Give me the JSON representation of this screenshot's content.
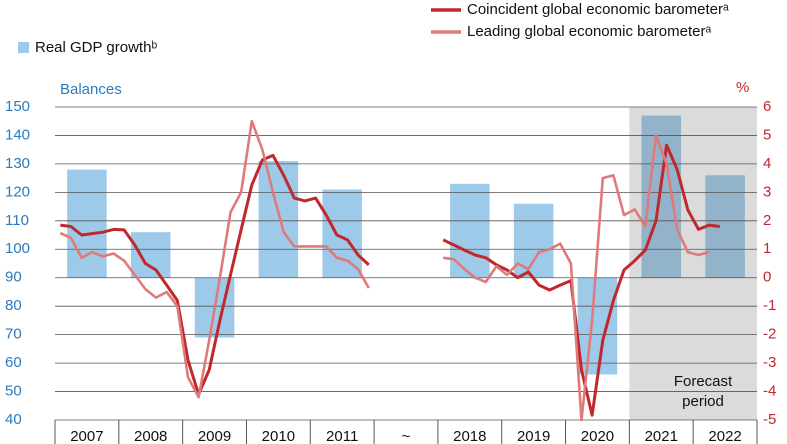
{
  "chart_data": {
    "type": "combo",
    "categories": [
      "2007",
      "2008",
      "2009",
      "2010",
      "2011",
      "~",
      "2018",
      "2019",
      "2020",
      "2021",
      "2022"
    ],
    "series": [
      {
        "name": "Real GDP growthᵇ",
        "type": "bar",
        "axis": "y2",
        "color": "#9ecae9",
        "values": [
          3.8,
          1.6,
          -2.1,
          4.1,
          3.1,
          null,
          3.3,
          2.6,
          -3.4,
          5.7,
          3.6
        ]
      },
      {
        "name": "Coincident global economic barometerᵃ",
        "type": "line",
        "color": "#c0282d",
        "values": [
          [
            108.5,
            108,
            105,
            105.5,
            106,
            107
          ],
          [
            106.8,
            101.5,
            95,
            92.7,
            87.4,
            82
          ],
          [
            61,
            49,
            57.6,
            75,
            91,
            106.8
          ],
          [
            122.6,
            131.4,
            133,
            126,
            118,
            117
          ],
          [
            118,
            112,
            105,
            103.3,
            98,
            94.5
          ],
          [
            null,
            null,
            null,
            null,
            null,
            null
          ],
          [
            103.3,
            101.5,
            99.7,
            98,
            97,
            94.5
          ],
          [
            92.7,
            90,
            92,
            87.4,
            85.7,
            87.4
          ],
          [
            89,
            57.6,
            41.7,
            68,
            82,
            92.7
          ],
          [
            96,
            99.7,
            110,
            136.6,
            128,
            113.8
          ],
          [
            107,
            108.5,
            108,
            null,
            null,
            null
          ]
        ]
      },
      {
        "name": "Leading global economic barometerᵃ",
        "type": "line",
        "color": "#e07a7a",
        "values": [
          [
            105.7,
            104,
            97,
            99,
            97.5,
            98.5
          ],
          [
            96,
            91,
            86,
            83,
            85,
            80
          ],
          [
            55,
            48,
            68,
            90,
            113,
            120
          ],
          [
            145,
            135,
            120,
            106,
            101,
            101
          ],
          [
            101,
            101,
            97,
            96,
            93,
            86.4
          ],
          [
            null,
            null,
            null,
            null,
            null,
            null
          ],
          [
            97,
            96.5,
            93,
            90,
            88.5,
            94
          ],
          [
            91,
            95,
            93,
            99,
            100,
            102
          ],
          [
            95,
            40,
            75,
            125,
            126,
            112
          ],
          [
            114,
            108,
            140,
            130,
            107,
            99
          ],
          [
            98,
            99,
            null,
            null,
            null,
            null
          ]
        ]
      }
    ],
    "ylabel": "Balances",
    "y2label": "%",
    "ylim": [
      40,
      150
    ],
    "yticks": [
      40,
      50,
      60,
      70,
      80,
      90,
      100,
      110,
      120,
      130,
      140,
      150
    ],
    "y2lim": [
      -5,
      6
    ],
    "y2ticks": [
      -5,
      -4,
      -3,
      -2,
      -1,
      0,
      1,
      2,
      3,
      4,
      5,
      6
    ],
    "grid": true,
    "forecast": {
      "from": "2021",
      "to": "2022",
      "label": [
        "Forecast",
        "period"
      ]
    }
  }
}
